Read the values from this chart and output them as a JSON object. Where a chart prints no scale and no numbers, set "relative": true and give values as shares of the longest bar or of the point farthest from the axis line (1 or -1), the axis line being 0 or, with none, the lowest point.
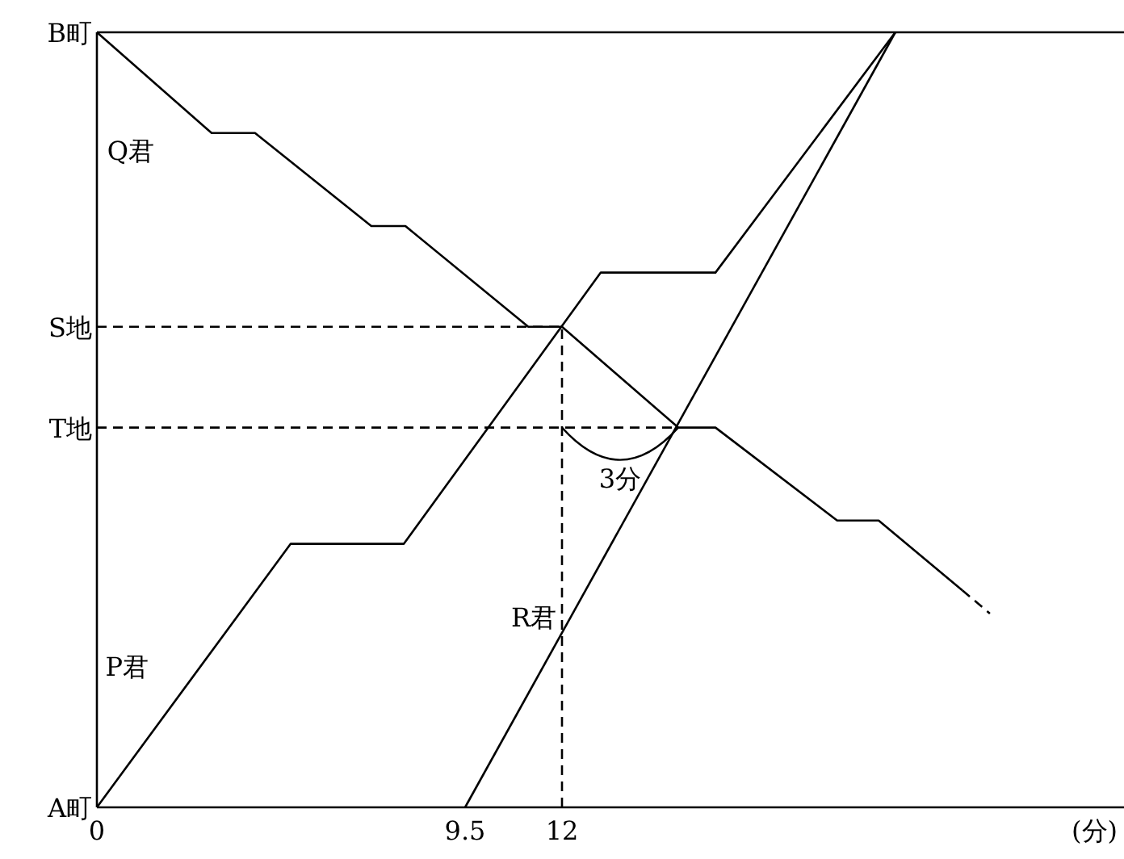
{
  "chart_data": {
    "type": "line",
    "xlabel": "(分)",
    "xlim": [
      0,
      26.5
    ],
    "xticks": [
      0,
      9.5,
      12
    ],
    "relative": true,
    "grid": false,
    "series": [
      {
        "name": "P君",
        "color": "#000000",
        "line_style": "solid",
        "x": [
          0,
          5,
          7.92,
          13,
          15.96,
          20.6
        ],
        "values": [
          0,
          0.34,
          0.34,
          0.69,
          0.69,
          1
        ]
      },
      {
        "name": "Q君",
        "color": "#000000",
        "line_style": "solid",
        "x": [
          0,
          2.96,
          4.08,
          7.08,
          7.96,
          11.13,
          12,
          15,
          15.96,
          19.1,
          20.17,
          22.33
        ],
        "values": [
          1,
          0.87,
          0.87,
          0.75,
          0.75,
          0.62,
          0.62,
          0.49,
          0.49,
          0.37,
          0.37,
          0.28
        ]
      },
      {
        "name": "R君",
        "color": "#000000",
        "line_style": "solid",
        "x": [
          9.5,
          20.6
        ],
        "values": [
          0,
          1
        ]
      },
      {
        "color": "#000000",
        "line_style": "dashed",
        "x": [
          22.33,
          23.04
        ],
        "values": [
          0.28,
          0.25
        ]
      },
      {
        "color": "#000000",
        "line_style": "dashed",
        "x": [
          0,
          12
        ],
        "values": [
          0.62,
          0.62
        ]
      },
      {
        "color": "#000000",
        "line_style": "dashed",
        "x": [
          0,
          15
        ],
        "values": [
          0.49,
          0.49
        ]
      },
      {
        "color": "#000000",
        "line_style": "dashed",
        "x": [
          12,
          12
        ],
        "values": [
          0,
          0.62
        ]
      },
      {
        "color": "#000000",
        "line_style": "solid",
        "x": [
          0,
          26.5
        ],
        "values": [
          1,
          1
        ]
      }
    ],
    "annotations": [
      "A町",
      "T地",
      "S地",
      "B町",
      {
        "text": "3分",
        "x": 13.5,
        "y": 0.49
      }
    ]
  }
}
